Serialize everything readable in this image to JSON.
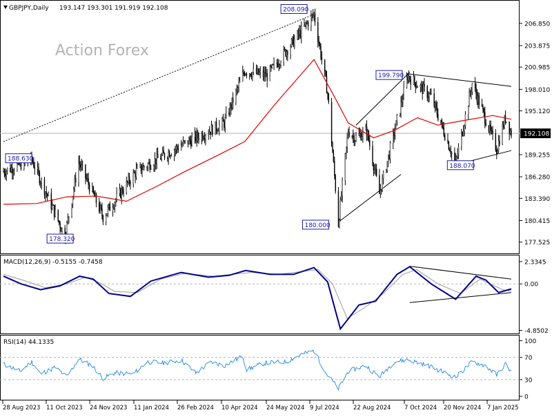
{
  "header": {
    "symbol": "GBPJPY,Daily",
    "ohlc": "193.147 193.301 191.919 192.108"
  },
  "watermark": "Action Forex",
  "colors": {
    "candle": "#000000",
    "ma": "#e00000",
    "macd": "#00008b",
    "signal": "#9a9a9a",
    "rsi": "#1e88e5",
    "label_border": "#1a1aa8",
    "label_text": "#1a1aa8"
  },
  "chart_data": [
    {
      "type": "candlestick",
      "panel": "price",
      "title": "",
      "ylim": [
        176.2,
        209.8
      ],
      "x_tick_labels": [
        "28 Aug 2023",
        "11 Oct 2023",
        "24 Nov 2023",
        "11 Jan 2024",
        "26 Feb 2024",
        "10 Apr 2024",
        "24 May 2024",
        "9 Jul 2024",
        "22 Aug 2024",
        "7 Oct 2024",
        "20 Nov 2024",
        "7 Jan 2025"
      ],
      "y_tick_labels": [
        "206.850",
        "203.875",
        "200.985",
        "198.010",
        "195.120",
        "192.108",
        "189.255",
        "186.280",
        "183.390",
        "180.415",
        "177.525"
      ],
      "y_ticks": [
        206.85,
        203.875,
        200.985,
        198.01,
        195.12,
        189.255,
        186.28,
        183.39,
        180.415,
        177.525
      ],
      "current_price": 192.108,
      "annotations": [
        {
          "text": "208.090",
          "date": "2024-07-11",
          "value": 208.09
        },
        {
          "text": "199.790",
          "date": "2024-10-15",
          "value": 199.79
        },
        {
          "text": "188.630",
          "date": "2023-09-26",
          "value": 188.63
        },
        {
          "text": "188.070",
          "date": "2024-12-03",
          "value": 188.07
        },
        {
          "text": "178.320",
          "date": "2023-10-30",
          "value": 178.32
        },
        {
          "text": "180.000",
          "date": "2024-08-05",
          "value": 180.0
        }
      ],
      "trendlines": [
        {
          "from": [
            "2023-08-28",
            191.0
          ],
          "to": [
            "2024-07-08",
            207.9
          ],
          "style": "dotted"
        },
        {
          "from": [
            "2024-08-05",
            180.2
          ],
          "to": [
            "2024-10-08",
            186.6
          ],
          "style": "solid"
        },
        {
          "from": [
            "2024-08-23",
            193.2
          ],
          "to": [
            "2024-10-17",
            200.3
          ],
          "style": "solid"
        },
        {
          "from": [
            "2024-10-14",
            200.1
          ],
          "to": [
            "2025-01-29",
            198.4
          ],
          "style": "solid"
        },
        {
          "from": [
            "2024-12-03",
            187.9
          ],
          "to": [
            "2025-01-29",
            189.8
          ],
          "style": "solid"
        }
      ],
      "pivots": [
        [
          "2023-08-28",
          187.0
        ],
        [
          "2023-09-26",
          188.6
        ],
        [
          "2023-10-30",
          178.3
        ],
        [
          "2023-11-13",
          188.3
        ],
        [
          "2023-12-08",
          180.9
        ],
        [
          "2024-01-11",
          187.0
        ],
        [
          "2024-02-26",
          190.5
        ],
        [
          "2024-04-10",
          193.5
        ],
        [
          "2024-05-01",
          200.5
        ],
        [
          "2024-05-24",
          199.8
        ],
        [
          "2024-07-11",
          208.09
        ],
        [
          "2024-07-25",
          197.5
        ],
        [
          "2024-08-05",
          180.0
        ],
        [
          "2024-08-15",
          192.5
        ],
        [
          "2024-08-22",
          191.5
        ],
        [
          "2024-09-03",
          192.5
        ],
        [
          "2024-09-16",
          184.0
        ],
        [
          "2024-10-15",
          199.79
        ],
        [
          "2024-11-08",
          197.0
        ],
        [
          "2024-12-03",
          188.07
        ],
        [
          "2024-12-20",
          198.8
        ],
        [
          "2025-01-14",
          190.0
        ],
        [
          "2025-01-23",
          194.2
        ],
        [
          "2025-01-29",
          192.1
        ]
      ],
      "ma_points": [
        [
          "2023-08-28",
          182.6
        ],
        [
          "2023-10-01",
          182.7
        ],
        [
          "2023-11-01",
          183.6
        ],
        [
          "2023-12-01",
          183.7
        ],
        [
          "2024-01-01",
          183.0
        ],
        [
          "2024-02-01",
          185.0
        ],
        [
          "2024-03-01",
          187.0
        ],
        [
          "2024-04-01",
          189.0
        ],
        [
          "2024-05-01",
          191.0
        ],
        [
          "2024-06-01",
          196.0
        ],
        [
          "2024-07-01",
          200.5
        ],
        [
          "2024-07-11",
          202.0
        ],
        [
          "2024-08-01",
          197.0
        ],
        [
          "2024-08-15",
          193.5
        ],
        [
          "2024-09-10",
          191.5
        ],
        [
          "2024-10-01",
          192.5
        ],
        [
          "2024-10-25",
          194.2
        ],
        [
          "2024-11-15",
          193.2
        ],
        [
          "2024-12-10",
          193.8
        ],
        [
          "2025-01-10",
          194.5
        ],
        [
          "2025-01-29",
          194.0
        ]
      ]
    },
    {
      "type": "line",
      "panel": "macd",
      "title": "MACD(12,26,9) -0.5155 -0.7458",
      "ylim": [
        -5.1,
        2.9
      ],
      "y_tick_labels": [
        "2.3345",
        "0.00",
        "-4.8502"
      ],
      "y_ticks": [
        2.3345,
        0,
        -4.8502
      ],
      "series": [
        {
          "points": [
            [
              "2023-08-28",
              0.8
            ],
            [
              "2023-09-15",
              0.0
            ],
            [
              "2023-10-05",
              -0.6
            ],
            [
              "2023-10-25",
              -0.2
            ],
            [
              "2023-11-14",
              0.8
            ],
            [
              "2023-11-28",
              0.5
            ],
            [
              "2023-12-14",
              -1.0
            ],
            [
              "2024-01-05",
              -1.3
            ],
            [
              "2024-01-26",
              0.3
            ],
            [
              "2024-02-26",
              1.2
            ],
            [
              "2024-03-25",
              0.7
            ],
            [
              "2024-04-15",
              0.9
            ],
            [
              "2024-05-02",
              1.4
            ],
            [
              "2024-05-27",
              1.0
            ],
            [
              "2024-06-20",
              1.0
            ],
            [
              "2024-07-11",
              1.7
            ],
            [
              "2024-07-25",
              0.2
            ],
            [
              "2024-08-07",
              -4.7
            ],
            [
              "2024-08-26",
              -2.2
            ],
            [
              "2024-09-12",
              -1.8
            ],
            [
              "2024-10-04",
              1.0
            ],
            [
              "2024-10-17",
              1.8
            ],
            [
              "2024-11-08",
              0.0
            ],
            [
              "2024-12-03",
              -1.6
            ],
            [
              "2024-12-24",
              0.8
            ],
            [
              "2025-01-03",
              0.4
            ],
            [
              "2025-01-16",
              -0.9
            ],
            [
              "2025-01-29",
              -0.52
            ]
          ]
        },
        {
          "points": [
            [
              "2023-08-28",
              1.0
            ],
            [
              "2023-09-20",
              0.3
            ],
            [
              "2023-10-10",
              -0.4
            ],
            [
              "2023-11-01",
              0.0
            ],
            [
              "2023-11-20",
              0.7
            ],
            [
              "2023-12-05",
              0.1
            ],
            [
              "2023-12-20",
              -0.8
            ],
            [
              "2024-01-12",
              -0.9
            ],
            [
              "2024-02-05",
              0.5
            ],
            [
              "2024-03-01",
              1.1
            ],
            [
              "2024-03-30",
              0.8
            ],
            [
              "2024-05-08",
              1.2
            ],
            [
              "2024-06-05",
              1.0
            ],
            [
              "2024-07-15",
              1.5
            ],
            [
              "2024-07-30",
              0.0
            ],
            [
              "2024-08-14",
              -3.6
            ],
            [
              "2024-09-02",
              -2.4
            ],
            [
              "2024-09-20",
              -1.0
            ],
            [
              "2024-10-10",
              1.0
            ],
            [
              "2024-10-24",
              1.5
            ],
            [
              "2024-11-15",
              0.0
            ],
            [
              "2024-12-08",
              -1.0
            ],
            [
              "2024-12-28",
              0.5
            ],
            [
              "2025-01-20",
              -0.6
            ],
            [
              "2025-01-29",
              -0.75
            ]
          ]
        }
      ],
      "trendlines": [
        {
          "from": [
            "2024-10-17",
            1.85
          ],
          "to": [
            "2025-01-29",
            0.5
          ]
        },
        {
          "from": [
            "2024-10-17",
            -1.95
          ],
          "to": [
            "2025-01-29",
            -0.9
          ]
        }
      ]
    },
    {
      "type": "line",
      "panel": "rsi",
      "title": "RSI(14) 44.1335",
      "ylim": [
        -5,
        108
      ],
      "y_tick_labels": [
        "100",
        "70",
        "30",
        "0"
      ],
      "y_ticks": [
        100,
        70,
        30,
        0
      ],
      "levels": [
        70,
        30
      ],
      "series": [
        {
          "points": [
            [
              "2023-08-28",
              58
            ],
            [
              "2023-09-14",
              45
            ],
            [
              "2023-09-26",
              62
            ],
            [
              "2023-10-05",
              40
            ],
            [
              "2023-10-20",
              52
            ],
            [
              "2023-11-01",
              35
            ],
            [
              "2023-11-13",
              67
            ],
            [
              "2023-11-27",
              55
            ],
            [
              "2023-12-08",
              32
            ],
            [
              "2023-12-20",
              42
            ],
            [
              "2024-01-08",
              40
            ],
            [
              "2024-01-22",
              62
            ],
            [
              "2024-02-08",
              60
            ],
            [
              "2024-02-26",
              65
            ],
            [
              "2024-03-12",
              42
            ],
            [
              "2024-03-28",
              62
            ],
            [
              "2024-04-10",
              55
            ],
            [
              "2024-04-29",
              72
            ],
            [
              "2024-05-03",
              48
            ],
            [
              "2024-05-22",
              60
            ],
            [
              "2024-06-12",
              62
            ],
            [
              "2024-06-28",
              75
            ],
            [
              "2024-07-11",
              82
            ],
            [
              "2024-07-24",
              40
            ],
            [
              "2024-08-05",
              14
            ],
            [
              "2024-08-15",
              45
            ],
            [
              "2024-09-02",
              55
            ],
            [
              "2024-09-16",
              35
            ],
            [
              "2024-10-01",
              62
            ],
            [
              "2024-10-15",
              66
            ],
            [
              "2024-11-05",
              55
            ],
            [
              "2024-12-03",
              34
            ],
            [
              "2024-12-20",
              62
            ],
            [
              "2025-01-03",
              55
            ],
            [
              "2025-01-14",
              38
            ],
            [
              "2025-01-23",
              58
            ],
            [
              "2025-01-29",
              44.13
            ]
          ]
        }
      ]
    }
  ]
}
